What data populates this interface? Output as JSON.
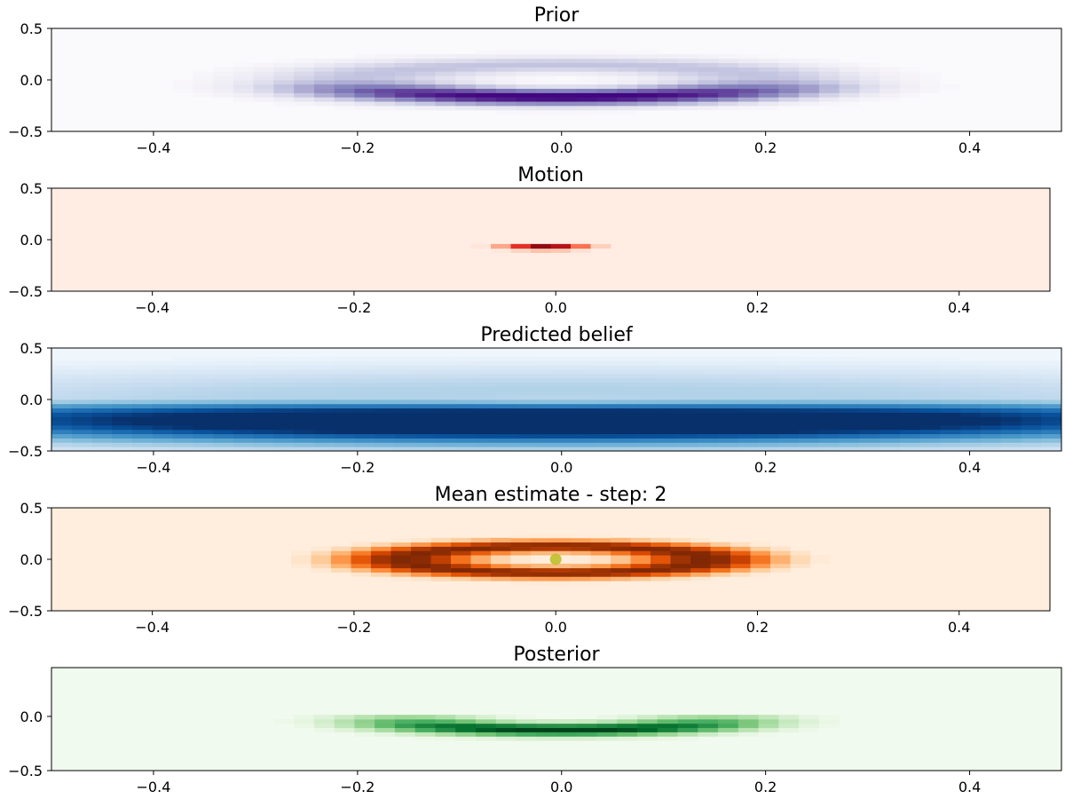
{
  "chart_data": [
    {
      "type": "heatmap",
      "title": "Prior",
      "colormap": "Purples",
      "xlim": [
        -0.5,
        0.49
      ],
      "ylim": [
        -0.5,
        0.5
      ],
      "xticks": [
        "−0.4",
        "−0.2",
        "0.0",
        "0.2",
        "0.4"
      ],
      "xtick_values": [
        -0.4,
        -0.2,
        0.0,
        0.2,
        0.4
      ],
      "yticks": [
        "−0.5",
        "0.0",
        "0.5"
      ],
      "ytick_values": [
        -0.5,
        0.0,
        0.5
      ],
      "shape": "ellipse-ring",
      "ring": {
        "cx": 0.0,
        "cy": 0.0,
        "rx": 0.2,
        "ry": 0.15,
        "thickness": 0.02,
        "max_intensity": 1.0,
        "bottom_weighted": true
      },
      "background_intensity": 0.02
    },
    {
      "type": "heatmap",
      "title": "Motion",
      "colormap": "Reds",
      "xlim": [
        -0.5,
        0.49
      ],
      "ylim": [
        -0.5,
        0.5
      ],
      "xticks": [
        "−0.4",
        "−0.2",
        "0.0",
        "0.2",
        "0.4"
      ],
      "xtick_values": [
        -0.4,
        -0.2,
        0.0,
        0.2,
        0.4
      ],
      "yticks": [
        "−0.5",
        "0.0",
        "0.5"
      ],
      "ytick_values": [
        -0.5,
        0.0,
        0.5
      ],
      "shape": "gaussian-blob",
      "blob": {
        "cx": -0.01,
        "cy": -0.07,
        "sx": 0.03,
        "sy": 0.02,
        "max_intensity": 1.0
      },
      "background_intensity": 0.05
    },
    {
      "type": "heatmap",
      "title": "Predicted belief",
      "colormap": "Blues",
      "xlim": [
        -0.5,
        0.49
      ],
      "ylim": [
        -0.5,
        0.5
      ],
      "xticks": [
        "−0.4",
        "−0.2",
        "0.0",
        "0.2",
        "0.4"
      ],
      "xtick_values": [
        -0.4,
        -0.2,
        0.0,
        0.2,
        0.4
      ],
      "yticks": [
        "−0.5",
        "0.0",
        "0.5"
      ],
      "ytick_values": [
        -0.5,
        0.0,
        0.5
      ],
      "shape": "ellipse-ring",
      "ring": {
        "cx": 0.0,
        "cy": 0.0,
        "rx": 0.22,
        "ry": 0.09,
        "thickness": 0.06,
        "max_intensity": 0.9,
        "bottom_weighted": true
      },
      "background_intensity": 0.04
    },
    {
      "type": "heatmap",
      "title": "Mean estimate - step: 2",
      "colormap": "Oranges",
      "xlim": [
        -0.5,
        0.49
      ],
      "ylim": [
        -0.5,
        0.5
      ],
      "xticks": [
        "−0.4",
        "−0.2",
        "0.0",
        "0.2",
        "0.4"
      ],
      "xtick_values": [
        -0.4,
        -0.2,
        0.0,
        0.2,
        0.4
      ],
      "yticks": [
        "−0.5",
        "0.0",
        "0.5"
      ],
      "ytick_values": [
        -0.5,
        0.0,
        0.5
      ],
      "shape": "ellipse-ring",
      "ring": {
        "cx": 0.0,
        "cy": 0.0,
        "rx": 0.15,
        "ry": 0.13,
        "thickness": 0.015,
        "max_intensity": 1.0,
        "bottom_weighted": false
      },
      "background_intensity": 0.06,
      "marker": {
        "x": 0.0,
        "y": 0.0,
        "color": "#bfbf2a"
      }
    },
    {
      "type": "heatmap",
      "title": "Posterior",
      "colormap": "Greens",
      "xlim": [
        -0.5,
        0.49
      ],
      "ylim": [
        -0.5,
        0.45
      ],
      "xticks": [
        "−0.4",
        "−0.2",
        "0.0",
        "0.2",
        "0.4"
      ],
      "xtick_values": [
        -0.4,
        -0.2,
        0.0,
        0.2,
        0.4
      ],
      "yticks": [
        "−0.5",
        "0.0"
      ],
      "ytick_values": [
        -0.5,
        0.0
      ],
      "shape": "ellipse-arc-lower",
      "ring": {
        "cx": 0.0,
        "cy": 0.0,
        "rx": 0.15,
        "ry": 0.11,
        "thickness": 0.015,
        "max_intensity": 1.0,
        "bottom_weighted": true
      },
      "background_intensity": 0.04
    }
  ]
}
